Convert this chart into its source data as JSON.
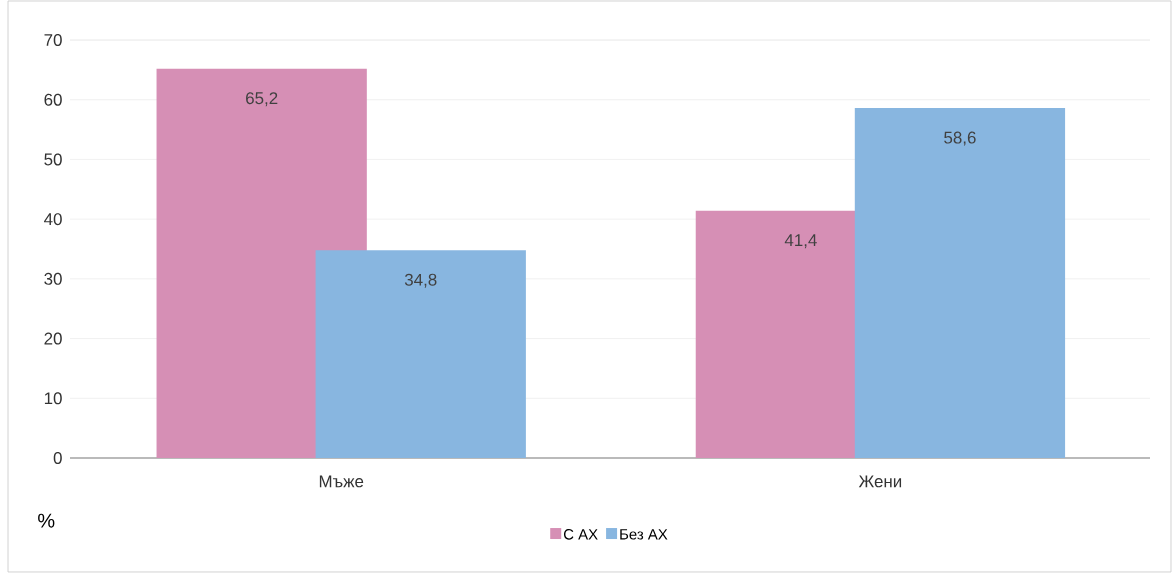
{
  "chart_data": {
    "type": "bar",
    "categories": [
      "Мъже",
      "Жени"
    ],
    "series": [
      {
        "name": "С АХ",
        "color": "#d68fb5",
        "values": [
          65.2,
          41.4
        ],
        "value_labels": [
          "65,2",
          "41,4"
        ]
      },
      {
        "name": "Без АХ",
        "color": "#88b6e0",
        "values": [
          34.8,
          58.6
        ],
        "value_labels": [
          "34,8",
          "58,6"
        ]
      }
    ],
    "ylabel": "%",
    "ylim": [
      0,
      70
    ],
    "yticks": [
      0,
      10,
      20,
      30,
      40,
      50,
      60,
      70
    ],
    "grid": "y",
    "legend": "bottom"
  }
}
